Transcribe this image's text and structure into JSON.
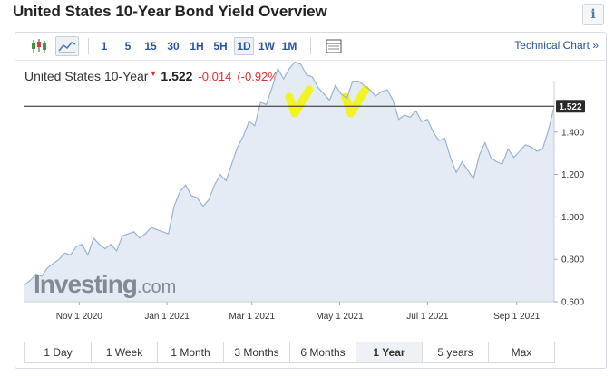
{
  "page": {
    "title": "United States 10-Year Bond Yield Overview",
    "info_label": "i"
  },
  "toolbar": {
    "timeframes": [
      "1",
      "5",
      "15",
      "30",
      "1H",
      "5H",
      "1D",
      "1W",
      "1M"
    ],
    "active_timeframe": "1D",
    "technical_chart_label": "Technical Chart »"
  },
  "quote": {
    "name": "United States 10-Year",
    "arrow": "▼",
    "price": "1.522",
    "change": "-0.014",
    "change_pct": "(-0.92%)"
  },
  "ranges": {
    "items": [
      "1 Day",
      "1 Week",
      "1 Month",
      "3 Months",
      "6 Months",
      "1 Year",
      "5 years",
      "Max"
    ],
    "active": "1 Year"
  },
  "watermark": {
    "brand": "Investing",
    "suffix": ".com"
  },
  "colors": {
    "line": "#9ab4d2",
    "area": "#e4ebf4",
    "price_line": "#222222",
    "price_badge": "#2b2b2b",
    "highlight": "#f5f500",
    "change": "#e03030",
    "link": "#2a55a0"
  },
  "chart_data": {
    "type": "area",
    "title": "United States 10-Year",
    "xlabel": "",
    "ylabel": "",
    "x_ticks": [
      "Nov 1 2020",
      "Jan 1 2021",
      "Mar 1 2021",
      "May 1 2021",
      "Jul 1 2021",
      "Sep 1 2021"
    ],
    "y_ticks": [
      "0.600",
      "0.800",
      "1.000",
      "1.200",
      "1.400"
    ],
    "ylim": [
      0.6,
      1.6
    ],
    "last_value": 1.522,
    "last_value_label": "1.522",
    "grid": false,
    "annotations": [
      "yellow highlight near Apr 1 2021 peak",
      "yellow highlight near May 10 2021 peak"
    ],
    "series": [
      {
        "x": [
          "2020-09-24",
          "2020-09-28",
          "2020-10-02",
          "2020-10-06",
          "2020-10-10",
          "2020-10-14",
          "2020-10-18",
          "2020-10-22",
          "2020-10-26",
          "2020-10-30",
          "2020-11-03",
          "2020-11-07",
          "2020-11-11",
          "2020-11-15",
          "2020-11-19",
          "2020-11-23",
          "2020-11-27",
          "2020-12-01",
          "2020-12-05",
          "2020-12-09",
          "2020-12-13",
          "2020-12-17",
          "2020-12-21",
          "2020-12-25",
          "2020-12-29",
          "2021-01-02",
          "2021-01-06",
          "2021-01-10",
          "2021-01-14",
          "2021-01-18",
          "2021-01-22",
          "2021-01-26",
          "2021-01-30",
          "2021-02-03",
          "2021-02-07",
          "2021-02-11",
          "2021-02-15",
          "2021-02-19",
          "2021-02-23",
          "2021-02-27",
          "2021-03-03",
          "2021-03-07",
          "2021-03-11",
          "2021-03-15",
          "2021-03-19",
          "2021-03-23",
          "2021-03-27",
          "2021-03-31",
          "2021-04-04",
          "2021-04-08",
          "2021-04-12",
          "2021-04-16",
          "2021-04-20",
          "2021-04-24",
          "2021-04-28",
          "2021-05-02",
          "2021-05-06",
          "2021-05-10",
          "2021-05-14",
          "2021-05-18",
          "2021-05-22",
          "2021-05-26",
          "2021-05-30",
          "2021-06-03",
          "2021-06-07",
          "2021-06-11",
          "2021-06-15",
          "2021-06-19",
          "2021-06-23",
          "2021-06-27",
          "2021-07-01",
          "2021-07-05",
          "2021-07-09",
          "2021-07-13",
          "2021-07-17",
          "2021-07-21",
          "2021-07-25",
          "2021-07-29",
          "2021-08-02",
          "2021-08-06",
          "2021-08-10",
          "2021-08-14",
          "2021-08-18",
          "2021-08-22",
          "2021-08-26",
          "2021-08-30",
          "2021-09-03",
          "2021-09-07",
          "2021-09-11",
          "2021-09-15",
          "2021-09-19",
          "2021-09-23",
          "2021-09-27"
        ],
        "values": [
          0.68,
          0.7,
          0.73,
          0.72,
          0.76,
          0.78,
          0.8,
          0.83,
          0.82,
          0.86,
          0.87,
          0.82,
          0.9,
          0.87,
          0.85,
          0.87,
          0.84,
          0.91,
          0.92,
          0.93,
          0.9,
          0.92,
          0.95,
          0.94,
          0.93,
          0.92,
          1.05,
          1.12,
          1.15,
          1.1,
          1.09,
          1.05,
          1.08,
          1.15,
          1.2,
          1.17,
          1.25,
          1.33,
          1.38,
          1.45,
          1.43,
          1.54,
          1.53,
          1.61,
          1.7,
          1.65,
          1.7,
          1.73,
          1.72,
          1.67,
          1.66,
          1.61,
          1.58,
          1.55,
          1.62,
          1.58,
          1.56,
          1.64,
          1.64,
          1.62,
          1.6,
          1.57,
          1.59,
          1.6,
          1.55,
          1.46,
          1.48,
          1.47,
          1.5,
          1.45,
          1.46,
          1.4,
          1.36,
          1.37,
          1.28,
          1.21,
          1.26,
          1.22,
          1.18,
          1.29,
          1.35,
          1.28,
          1.26,
          1.25,
          1.32,
          1.28,
          1.31,
          1.34,
          1.33,
          1.31,
          1.32,
          1.41,
          1.52
        ]
      }
    ]
  }
}
